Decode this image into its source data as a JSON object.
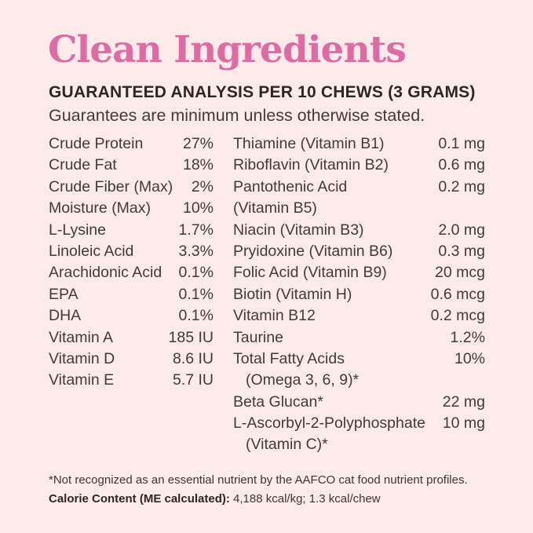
{
  "title": "Clean Ingredients",
  "heading": "GUARANTEED ANALYSIS PER 10 CHEWS (3 GRAMS)",
  "subheading": "Guarantees are minimum unless otherwise stated.",
  "colors": {
    "background": "#fcebe8",
    "title_pink": "#df6ba4",
    "heading_text": "#2b2726",
    "body_text": "#403b3a",
    "footnote_text": "#3b3736"
  },
  "analysis": {
    "left": [
      {
        "label": "Crude Protein",
        "value": "27%"
      },
      {
        "label": "Crude Fat",
        "value": "18%"
      },
      {
        "label": "Crude Fiber (Max)",
        "value": "2%"
      },
      {
        "label": "Moisture (Max)",
        "value": "10%"
      },
      {
        "label": "L-Lysine",
        "value": "1.7%"
      },
      {
        "label": "Linoleic Acid",
        "value": "3.3%"
      },
      {
        "label": "Arachidonic Acid",
        "value": "0.1%"
      },
      {
        "label": "EPA",
        "value": "0.1%"
      },
      {
        "label": "DHA",
        "value": "0.1%"
      },
      {
        "label": "Vitamin A",
        "value": "185 IU"
      },
      {
        "label": "Vitamin D",
        "value": "8.6 IU"
      },
      {
        "label": "Vitamin E",
        "value": "5.7 IU"
      }
    ],
    "right": [
      {
        "label": "Thiamine (Vitamin B1)",
        "value": "0.1 mg"
      },
      {
        "label": "Riboflavin (Vitamin B2)",
        "value": "0.6 mg"
      },
      {
        "label": "Pantothenic Acid",
        "value": "0.2 mg"
      },
      {
        "label": "(Vitamin B5)",
        "value": ""
      },
      {
        "label": "Niacin (Vitamin B3)",
        "value": "2.0 mg"
      },
      {
        "label": "Pryidoxine (Vitamin B6)",
        "value": "0.3 mg"
      },
      {
        "label": "Folic Acid (Vitamin B9)",
        "value": "20 mcg"
      },
      {
        "label": "Biotin (Vitamin H)",
        "value": "0.6 mcg"
      },
      {
        "label": "Vitamin B12",
        "value": "0.2 mcg"
      },
      {
        "label": "Taurine",
        "value": "1.2%"
      },
      {
        "label": "Total Fatty Acids",
        "value": "10%"
      },
      {
        "label": "(Omega 3, 6, 9)*",
        "value": ""
      },
      {
        "label": "Beta Glucan*",
        "value": "22 mg"
      },
      {
        "label": "L-Ascorbyl-2-Polyphosphate",
        "value": "10 mg"
      },
      {
        "label": "(Vitamin C)*",
        "value": ""
      }
    ]
  },
  "footnotes": {
    "asterisk": "*Not recognized as an essential nutrient by the AAFCO cat food nutrient profiles.",
    "calorie_label": "Calorie Content (ME calculated):",
    "calorie_value": "4,188 kcal/kg; 1.3 kcal/chew"
  }
}
